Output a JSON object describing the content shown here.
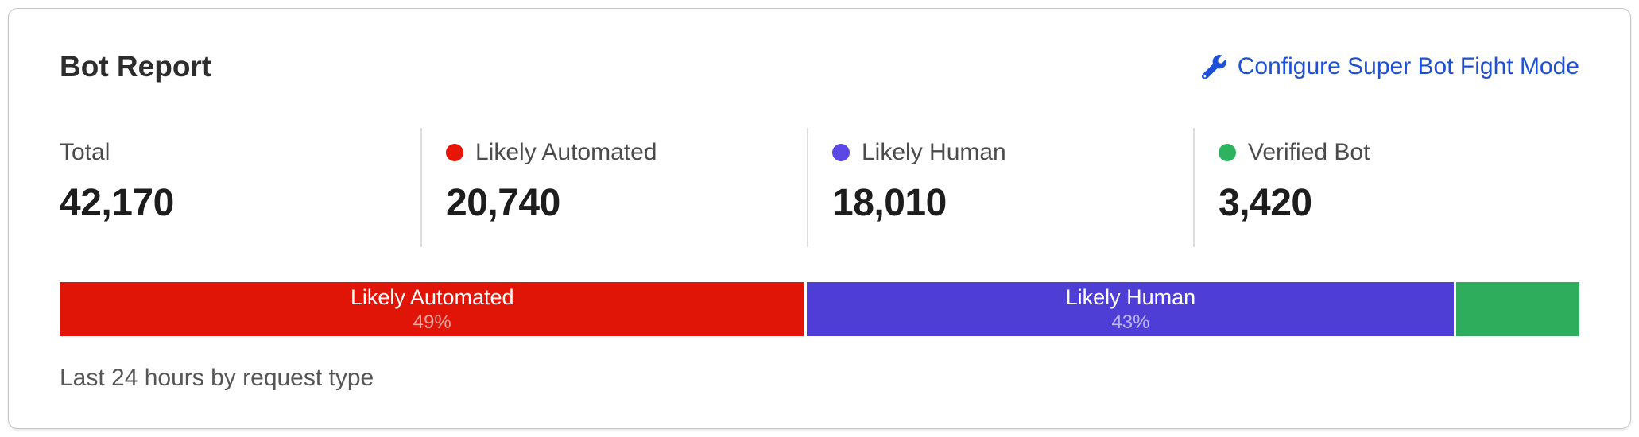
{
  "header": {
    "title": "Bot Report",
    "action_label": "Configure Super Bot Fight Mode",
    "action_icon": "wrench-icon",
    "link_color": "#1d4fd7"
  },
  "stats": [
    {
      "label": "Total",
      "value": "42,170",
      "dot_color": null
    },
    {
      "label": "Likely Automated",
      "value": "20,740",
      "dot_color": "#e61507"
    },
    {
      "label": "Likely Human",
      "value": "18,010",
      "dot_color": "#5b48e6"
    },
    {
      "label": "Verified Bot",
      "value": "3,420",
      "dot_color": "#2db25f"
    }
  ],
  "chart_data": {
    "type": "bar",
    "stacked": true,
    "title": "Bot Report",
    "caption": "Last 24 hours by request type",
    "total": 42170,
    "segments": [
      {
        "name": "Likely Automated",
        "value": 20740,
        "percent": 49,
        "percent_label": "49%",
        "show_label": true,
        "color": "#e11507"
      },
      {
        "name": "Likely Human",
        "value": 18010,
        "percent": 43,
        "percent_label": "43%",
        "show_label": true,
        "color": "#4e3ed6"
      },
      {
        "name": "Verified Bot",
        "value": 3420,
        "percent": 8,
        "percent_label": "8%",
        "show_label": false,
        "color": "#2eae5c"
      }
    ]
  },
  "caption": "Last 24 hours by request type"
}
